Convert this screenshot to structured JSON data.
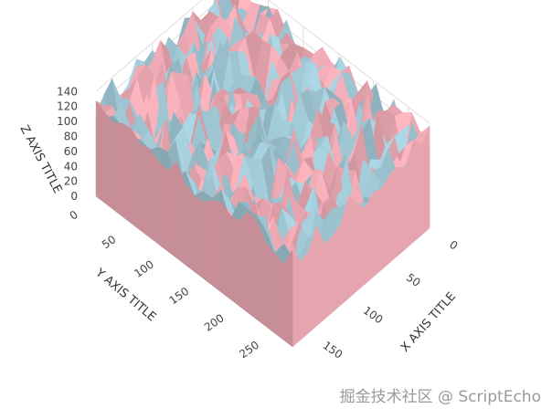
{
  "chart_data": {
    "type": "surface",
    "title": "",
    "xaxis": {
      "title": "X AXIS TITLE",
      "ticks": [
        "0",
        "50",
        "100",
        "150"
      ],
      "range": [
        0,
        170
      ]
    },
    "yaxis": {
      "title": "Y AXIS TITLE",
      "ticks": [
        "0",
        "50",
        "100",
        "150",
        "200",
        "250"
      ],
      "range": [
        0,
        280
      ]
    },
    "zaxis": {
      "title": "Z AXIS TITLE",
      "ticks": [
        "0",
        "20",
        "40",
        "60",
        "80",
        "100",
        "120",
        "140"
      ],
      "range": [
        0,
        140
      ]
    },
    "series": [
      {
        "color": "#add8e6"
      },
      {
        "color": "#ffb6c1"
      }
    ],
    "grid": true,
    "legend": "none"
  },
  "watermark": "掘金技术社区 @ ScriptEcho"
}
